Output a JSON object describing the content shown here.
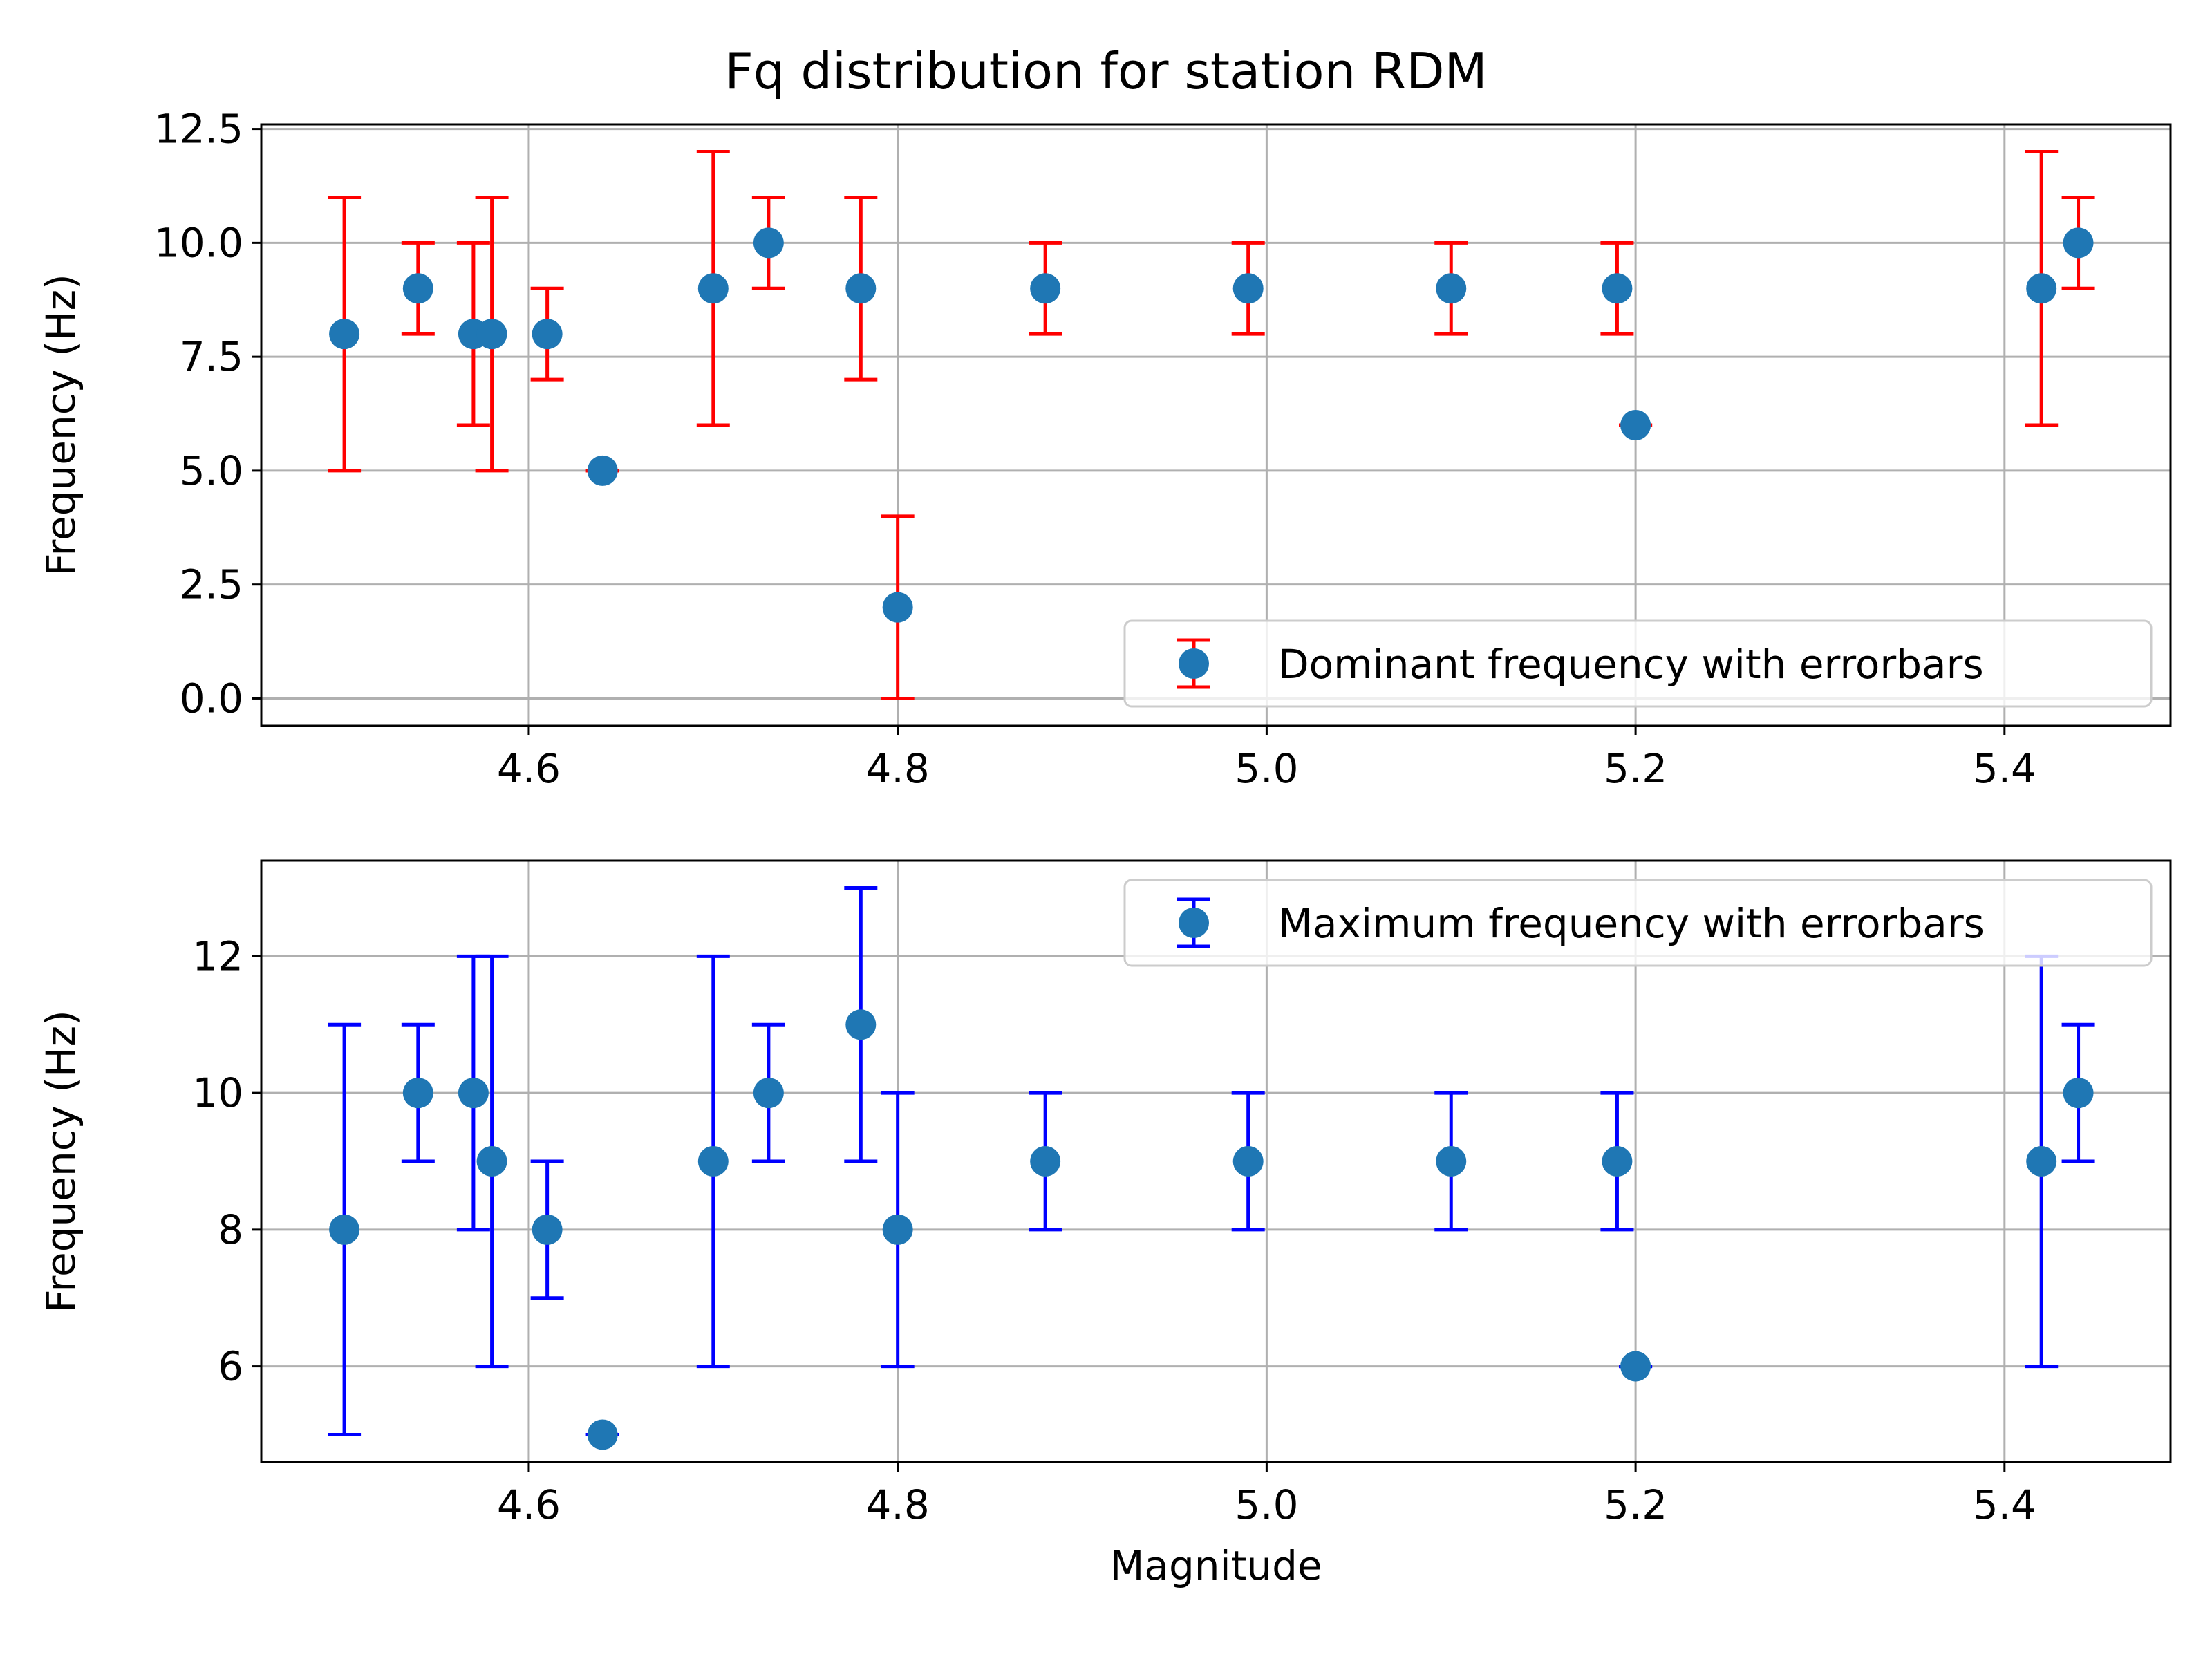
{
  "figure": {
    "title": "Fq distribution for station RDM"
  },
  "chart_data": [
    {
      "type": "scatter",
      "title": "Fq distribution for station RDM",
      "xlabel": "",
      "ylabel": "Frequency (Hz)",
      "xlim": [
        4.455,
        5.49
      ],
      "ylim": [
        -0.6,
        12.6
      ],
      "x_ticks": [
        4.6,
        4.8,
        5.0,
        5.2,
        5.4
      ],
      "x_tick_labels": [
        "4.6",
        "4.8",
        "5.0",
        "5.2",
        "5.4"
      ],
      "y_ticks": [
        0.0,
        2.5,
        5.0,
        7.5,
        10.0,
        12.5
      ],
      "y_tick_labels": [
        "0.0",
        "2.5",
        "5.0",
        "7.5",
        "10.0",
        "12.5"
      ],
      "grid": true,
      "legend_position": "lower-right",
      "marker_color": "#1f77b4",
      "errorbar_color": "#ff0000",
      "series": [
        {
          "name": "Dominant frequency with errorbars",
          "points": [
            {
              "x": 4.5,
              "y": 8,
              "low": 5,
              "high": 11
            },
            {
              "x": 4.54,
              "y": 9,
              "low": 8,
              "high": 10
            },
            {
              "x": 4.57,
              "y": 8,
              "low": 6,
              "high": 10
            },
            {
              "x": 4.58,
              "y": 8,
              "low": 5,
              "high": 11
            },
            {
              "x": 4.61,
              "y": 8,
              "low": 7,
              "high": 9
            },
            {
              "x": 4.64,
              "y": 5,
              "low": 5,
              "high": 5
            },
            {
              "x": 4.7,
              "y": 9,
              "low": 6,
              "high": 12
            },
            {
              "x": 4.73,
              "y": 10,
              "low": 9,
              "high": 11
            },
            {
              "x": 4.78,
              "y": 9,
              "low": 7,
              "high": 11
            },
            {
              "x": 4.8,
              "y": 2,
              "low": 0,
              "high": 4
            },
            {
              "x": 4.88,
              "y": 9,
              "low": 8,
              "high": 10
            },
            {
              "x": 4.99,
              "y": 9,
              "low": 8,
              "high": 10
            },
            {
              "x": 5.1,
              "y": 9,
              "low": 8,
              "high": 10
            },
            {
              "x": 5.19,
              "y": 9,
              "low": 8,
              "high": 10
            },
            {
              "x": 5.2,
              "y": 6,
              "low": 6,
              "high": 6
            },
            {
              "x": 5.42,
              "y": 9,
              "low": 6,
              "high": 12
            },
            {
              "x": 5.44,
              "y": 10,
              "low": 9,
              "high": 11
            }
          ]
        }
      ]
    },
    {
      "type": "scatter",
      "title": "",
      "xlabel": "Magnitude",
      "ylabel": "Frequency (Hz)",
      "xlim": [
        4.455,
        5.49
      ],
      "ylim": [
        4.6,
        13.4
      ],
      "x_ticks": [
        4.6,
        4.8,
        5.0,
        5.2,
        5.4
      ],
      "x_tick_labels": [
        "4.6",
        "4.8",
        "5.0",
        "5.2",
        "5.4"
      ],
      "y_ticks": [
        6,
        8,
        10,
        12
      ],
      "y_tick_labels": [
        "6",
        "8",
        "10",
        "12"
      ],
      "grid": true,
      "legend_position": "upper-right",
      "marker_color": "#1f77b4",
      "errorbar_color": "#0000ff",
      "series": [
        {
          "name": "Maximum frequency with errorbars",
          "points": [
            {
              "x": 4.5,
              "y": 8,
              "low": 5,
              "high": 11
            },
            {
              "x": 4.54,
              "y": 10,
              "low": 9,
              "high": 11
            },
            {
              "x": 4.57,
              "y": 10,
              "low": 8,
              "high": 12
            },
            {
              "x": 4.58,
              "y": 9,
              "low": 6,
              "high": 12
            },
            {
              "x": 4.61,
              "y": 8,
              "low": 7,
              "high": 9
            },
            {
              "x": 4.64,
              "y": 5,
              "low": 5,
              "high": 5
            },
            {
              "x": 4.7,
              "y": 9,
              "low": 6,
              "high": 12
            },
            {
              "x": 4.73,
              "y": 10,
              "low": 9,
              "high": 11
            },
            {
              "x": 4.78,
              "y": 11,
              "low": 9,
              "high": 13
            },
            {
              "x": 4.8,
              "y": 8,
              "low": 6,
              "high": 10
            },
            {
              "x": 4.88,
              "y": 9,
              "low": 8,
              "high": 10
            },
            {
              "x": 4.99,
              "y": 9,
              "low": 8,
              "high": 10
            },
            {
              "x": 5.1,
              "y": 9,
              "low": 8,
              "high": 10
            },
            {
              "x": 5.19,
              "y": 9,
              "low": 8,
              "high": 10
            },
            {
              "x": 5.2,
              "y": 6,
              "low": 6,
              "high": 6
            },
            {
              "x": 5.42,
              "y": 9,
              "low": 6,
              "high": 12
            },
            {
              "x": 5.44,
              "y": 10,
              "low": 9,
              "high": 11
            }
          ]
        }
      ]
    }
  ]
}
